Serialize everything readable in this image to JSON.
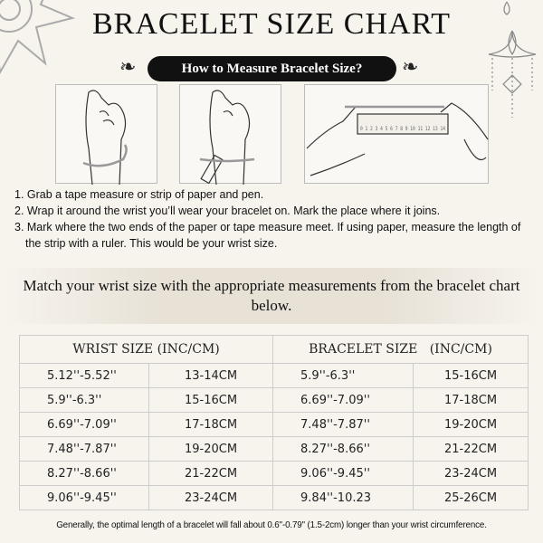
{
  "title": "BRACELET SIZE CHART",
  "subtitle": "How to Measure Bracelet Size?",
  "steps": [
    "1. Grab a tape measure or strip of paper and pen.",
    "2. Wrap it around the wrist you’ll wear your bracelet on. Mark the place where it joins.",
    "3. Mark where the two ends of the paper or tape measure meet. If using paper, measure the length of the strip with a ruler. This would be your wrist size."
  ],
  "match_text": "Match your wrist size with the appropriate measurements from the bracelet chart below.",
  "table": {
    "headers": [
      "WRIST SIZE (INC/CM)",
      "BRACELET SIZE   (INC/CM)"
    ],
    "rows": [
      [
        "5.12''-5.52''",
        "13-14CM",
        "5.9''-6.3''",
        "15-16CM"
      ],
      [
        "5.9''-6.3''",
        "15-16CM",
        "6.69''-7.09''",
        "17-18CM"
      ],
      [
        "6.69''-7.09''",
        "17-18CM",
        "7.48''-7.87''",
        "19-20CM"
      ],
      [
        "7.48''-7.87''",
        "19-20CM",
        "8.27''-8.66''",
        "21-22CM"
      ],
      [
        "8.27''-8.66''",
        "21-22CM",
        "9.06''-9.45''",
        "23-24CM"
      ],
      [
        "9.06''-9.45''",
        "23-24CM",
        "9.84''-10.23",
        "25-26CM"
      ]
    ]
  },
  "ruler_numbers": "0 1 2 3 4 5 6 7 8 9 10 11 12 13 14",
  "note": "Generally, the optimal length of a bracelet will fall about 0.6''-0.79'' (1.5-2cm) longer than your wrist circumference."
}
